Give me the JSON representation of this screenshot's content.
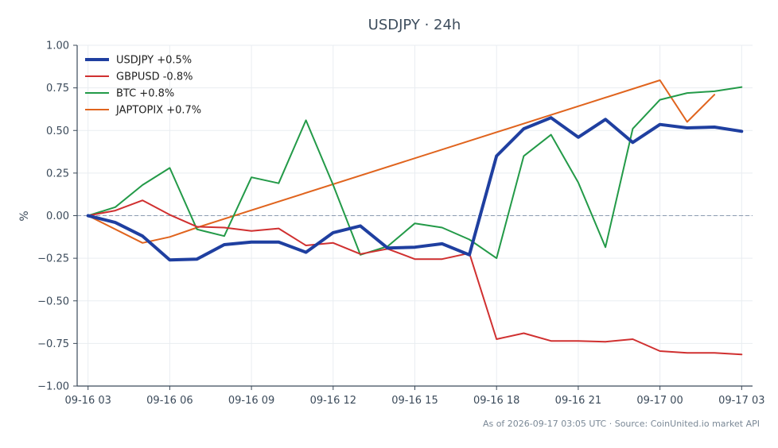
{
  "chart_data": {
    "type": "line",
    "title": "USDJPY · 24h",
    "ylabel": "%",
    "xlabel": "",
    "ylim": [
      -1.0,
      1.0
    ],
    "xlim": [
      "09-16 02:36",
      "09-17 03:24"
    ],
    "x_ticks": [
      "09-16 03",
      "09-16 06",
      "09-16 09",
      "09-16 12",
      "09-16 15",
      "09-16 18",
      "09-16 21",
      "09-17 00",
      "09-17 03"
    ],
    "y_ticks": [
      "1.00",
      "0.75",
      "0.50",
      "0.25",
      "0.00",
      "−0.25",
      "−0.50",
      "−0.75",
      "−1.00"
    ],
    "grid": true,
    "zero_line": true,
    "legend_position": "top-left",
    "series": [
      {
        "name": "USDJPY +0.5%",
        "color": "#1f3fa0",
        "width": 4,
        "x": [
          "09-16 03:00",
          "09-16 04:00",
          "09-16 05:00",
          "09-16 06:00",
          "09-16 07:00",
          "09-16 08:00",
          "09-16 09:00",
          "09-16 10:00",
          "09-16 11:00",
          "09-16 12:00",
          "09-16 13:00",
          "09-16 14:00",
          "09-16 15:00",
          "09-16 16:00",
          "09-16 17:00",
          "09-16 18:00",
          "09-16 19:00",
          "09-16 20:00",
          "09-16 21:00",
          "09-16 22:00",
          "09-16 23:00",
          "09-17 00:00",
          "09-17 01:00",
          "09-17 02:00",
          "09-17 03:00"
        ],
        "values": [
          0.0,
          -0.04,
          -0.12,
          -0.26,
          -0.255,
          -0.17,
          -0.155,
          -0.155,
          -0.215,
          -0.1,
          -0.06,
          -0.19,
          -0.185,
          -0.165,
          -0.23,
          0.35,
          0.51,
          0.575,
          0.46,
          0.565,
          0.43,
          0.535,
          0.515,
          0.52,
          0.495
        ]
      },
      {
        "name": "GBPUSD -0.8%",
        "color": "#d03030",
        "width": 2,
        "x": [
          "09-16 03:00",
          "09-16 04:00",
          "09-16 05:00",
          "09-16 06:00",
          "09-16 07:00",
          "09-16 08:00",
          "09-16 09:00",
          "09-16 10:00",
          "09-16 11:00",
          "09-16 12:00",
          "09-16 13:00",
          "09-16 14:00",
          "09-16 15:00",
          "09-16 16:00",
          "09-16 17:00",
          "09-16 18:00",
          "09-16 19:00",
          "09-16 20:00",
          "09-16 21:00",
          "09-16 22:00",
          "09-16 23:00",
          "09-17 00:00",
          "09-17 01:00",
          "09-17 02:00",
          "09-17 03:00"
        ],
        "values": [
          0.0,
          0.03,
          0.09,
          0.005,
          -0.065,
          -0.07,
          -0.09,
          -0.075,
          -0.175,
          -0.16,
          -0.225,
          -0.195,
          -0.255,
          -0.255,
          -0.22,
          -0.725,
          -0.69,
          -0.735,
          -0.735,
          -0.74,
          -0.725,
          -0.795,
          -0.805,
          -0.805,
          -0.815
        ]
      },
      {
        "name": "BTC +0.8%",
        "color": "#239a48",
        "width": 2,
        "x": [
          "09-16 03:00",
          "09-16 04:00",
          "09-16 05:00",
          "09-16 06:00",
          "09-16 07:00",
          "09-16 08:00",
          "09-16 09:00",
          "09-16 10:00",
          "09-16 11:00",
          "09-16 12:00",
          "09-16 13:00",
          "09-16 14:00",
          "09-16 15:00",
          "09-16 16:00",
          "09-16 17:00",
          "09-16 18:00",
          "09-16 19:00",
          "09-16 20:00",
          "09-16 21:00",
          "09-16 22:00",
          "09-16 23:00",
          "09-17 00:00",
          "09-17 01:00",
          "09-17 02:00",
          "09-17 03:00"
        ],
        "values": [
          0.0,
          0.05,
          0.18,
          0.28,
          -0.08,
          -0.12,
          0.225,
          0.19,
          0.56,
          0.18,
          -0.23,
          -0.18,
          -0.045,
          -0.07,
          -0.14,
          -0.25,
          0.35,
          0.475,
          0.195,
          -0.185,
          0.51,
          0.68,
          0.72,
          0.73,
          0.755
        ]
      },
      {
        "name": "JAPTOPIX +0.7%",
        "color": "#e0641e",
        "width": 2,
        "x": [
          "09-16 03:00",
          "09-16 05:00",
          "09-16 06:00",
          "09-16 07:00",
          "09-17 00:00",
          "09-17 01:00",
          "09-17 02:00"
        ],
        "values": [
          0.0,
          -0.16,
          -0.125,
          -0.07,
          0.795,
          0.55,
          0.71
        ]
      }
    ]
  },
  "footer_text": "As of 2026-09-17 03:05 UTC · Source: CoinUnited.io market API"
}
